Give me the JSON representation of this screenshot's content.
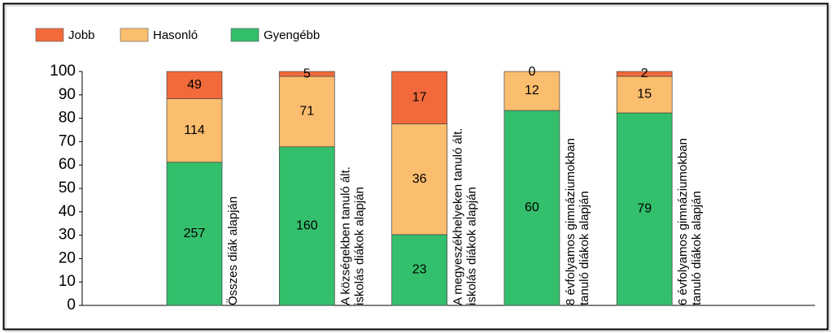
{
  "chart_data": {
    "type": "bar",
    "stacking": "percent",
    "categories": [
      [
        "Összes diák alapján"
      ],
      [
        "A községekben tanuló ált.",
        "iskolás diákok alapján"
      ],
      [
        "A megyeszékhelyeken tanuló ált.",
        "iskolás diákok alapján"
      ],
      [
        "8 évfolyamos gimnáziumokban",
        "tanuló diákok alapján"
      ],
      [
        "6 évfolyamos gimnáziumokban",
        "tanuló diákok alapján"
      ]
    ],
    "series": [
      {
        "name": "Jobb",
        "color": "#f26a3c",
        "values": [
          49,
          5,
          17,
          0,
          2
        ]
      },
      {
        "name": "Hasonló",
        "color": "#fbbd6e",
        "values": [
          114,
          71,
          36,
          12,
          15
        ]
      },
      {
        "name": "Gyengébb",
        "color": "#34bf6c",
        "values": [
          257,
          160,
          23,
          60,
          79
        ]
      }
    ],
    "ylim": [
      0,
      100
    ],
    "yticks": [
      0,
      10,
      20,
      30,
      40,
      50,
      60,
      70,
      80,
      90,
      100
    ],
    "legend": "top-left"
  }
}
